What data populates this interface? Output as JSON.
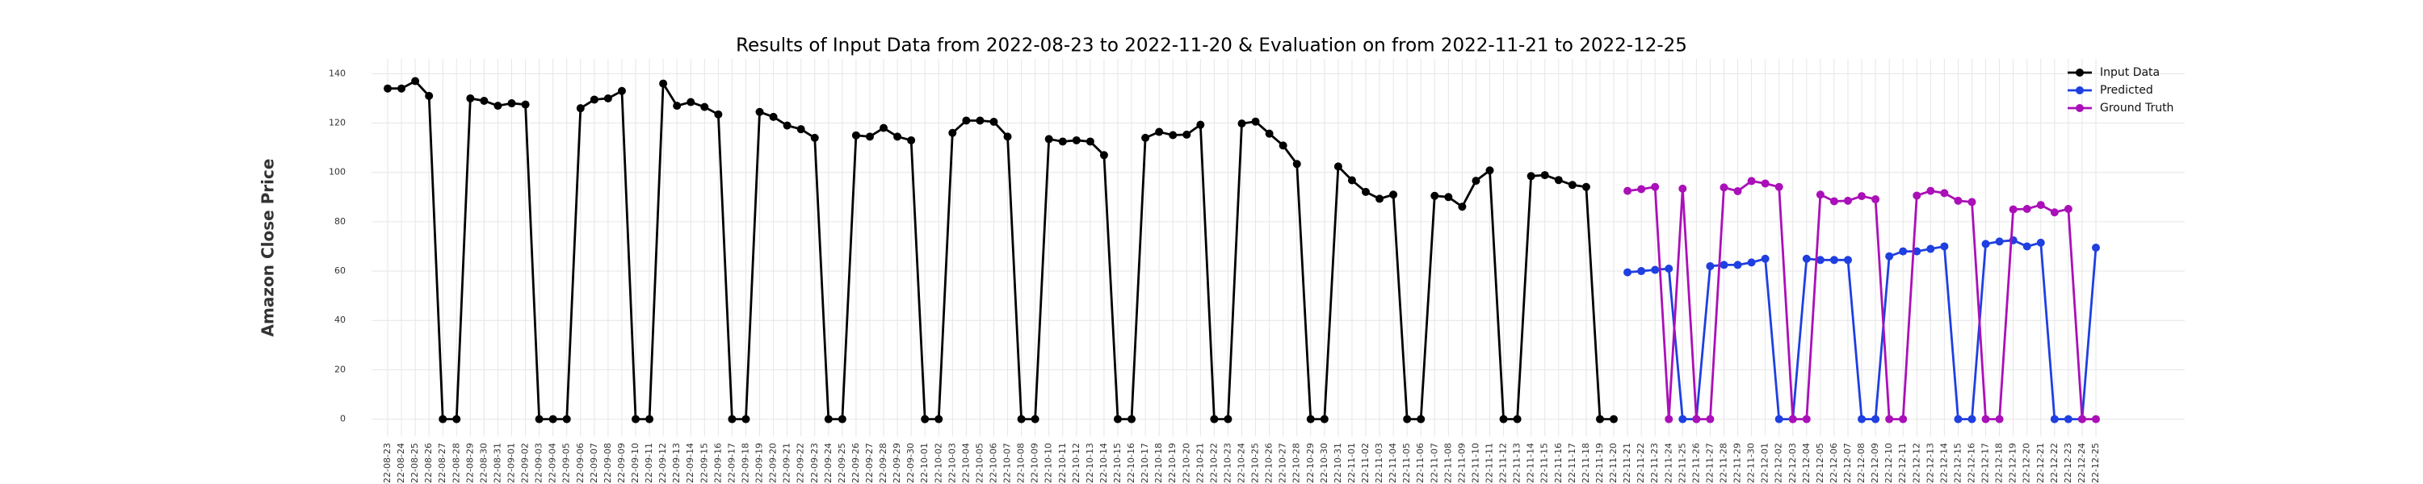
{
  "chart_data": {
    "type": "line",
    "title": "Results of Input Data from 2022-08-23 to 2022-11-20 & Evaluation on from 2022-11-21 to 2022-12-25",
    "y_label": "Amazon Close Price",
    "categories": [
      "2022-08-23",
      "2022-08-24",
      "2022-08-25",
      "2022-08-26",
      "2022-08-27",
      "2022-08-28",
      "2022-08-29",
      "2022-08-30",
      "2022-08-31",
      "2022-09-01",
      "2022-09-02",
      "2022-09-03",
      "2022-09-04",
      "2022-09-05",
      "2022-09-06",
      "2022-09-07",
      "2022-09-08",
      "2022-09-09",
      "2022-09-10",
      "2022-09-11",
      "2022-09-12",
      "2022-09-13",
      "2022-09-14",
      "2022-09-15",
      "2022-09-16",
      "2022-09-17",
      "2022-09-18",
      "2022-09-19",
      "2022-09-20",
      "2022-09-21",
      "2022-09-22",
      "2022-09-23",
      "2022-09-24",
      "2022-09-25",
      "2022-09-26",
      "2022-09-27",
      "2022-09-28",
      "2022-09-29",
      "2022-09-30",
      "2022-10-01",
      "2022-10-02",
      "2022-10-03",
      "2022-10-04",
      "2022-10-05",
      "2022-10-06",
      "2022-10-07",
      "2022-10-08",
      "2022-10-09",
      "2022-10-10",
      "2022-10-11",
      "2022-10-12",
      "2022-10-13",
      "2022-10-14",
      "2022-10-15",
      "2022-10-16",
      "2022-10-17",
      "2022-10-18",
      "2022-10-19",
      "2022-10-20",
      "2022-10-21",
      "2022-10-22",
      "2022-10-23",
      "2022-10-24",
      "2022-10-25",
      "2022-10-26",
      "2022-10-27",
      "2022-10-28",
      "2022-10-29",
      "2022-10-30",
      "2022-10-31",
      "2022-11-01",
      "2022-11-02",
      "2022-11-03",
      "2022-11-04",
      "2022-11-05",
      "2022-11-06",
      "2022-11-07",
      "2022-11-08",
      "2022-11-09",
      "2022-11-10",
      "2022-11-11",
      "2022-11-12",
      "2022-11-13",
      "2022-11-14",
      "2022-11-15",
      "2022-11-16",
      "2022-11-17",
      "2022-11-18",
      "2022-11-19",
      "2022-11-20",
      "2022-11-21",
      "2022-11-22",
      "2022-11-23",
      "2022-11-24",
      "2022-11-25",
      "2022-11-26",
      "2022-11-27",
      "2022-11-28",
      "2022-11-29",
      "2022-11-30",
      "2022-12-01",
      "2022-12-02",
      "2022-12-03",
      "2022-12-04",
      "2022-12-05",
      "2022-12-06",
      "2022-12-07",
      "2022-12-08",
      "2022-12-09",
      "2022-12-10",
      "2022-12-11",
      "2022-12-12",
      "2022-12-13",
      "2022-12-14",
      "2022-12-15",
      "2022-12-16",
      "2022-12-17",
      "2022-12-18",
      "2022-12-19",
      "2022-12-20",
      "2022-12-21",
      "2022-12-22",
      "2022-12-23",
      "2022-12-24",
      "2022-12-25"
    ],
    "series": [
      {
        "name": "Input Data",
        "color": "#000000",
        "values": [
          134,
          134,
          137,
          131,
          0,
          0,
          130,
          129,
          127,
          128,
          127.5,
          0,
          0,
          0,
          126,
          129.5,
          130,
          133,
          0,
          0,
          136,
          127,
          128.5,
          126.5,
          123.5,
          0,
          0,
          124.5,
          122.5,
          119,
          117.5,
          114,
          0,
          0,
          115,
          114.5,
          118,
          114.5,
          113,
          0,
          0,
          116,
          121,
          121,
          120.5,
          114.5,
          0,
          0,
          113.5,
          112.5,
          113,
          112.5,
          107,
          0,
          0,
          114,
          116.4,
          115.1,
          115.3,
          119.3,
          0,
          0,
          119.8,
          120.6,
          115.7,
          110.9,
          103.4,
          0,
          0,
          102.4,
          96.8,
          92.1,
          89.3,
          91,
          0,
          0,
          90.5,
          90,
          86.1,
          96.6,
          100.8,
          0,
          0,
          98.5,
          98.9,
          96.9,
          94.9,
          94.1,
          0,
          0,
          null,
          null,
          null,
          null,
          null,
          null,
          null,
          null,
          null,
          null,
          null,
          null,
          null,
          null,
          null,
          null,
          null,
          null,
          null,
          null,
          null,
          null,
          null,
          null,
          null,
          null,
          null,
          null,
          null,
          null,
          null,
          null,
          null,
          null,
          null
        ]
      },
      {
        "name": "Predicted",
        "color": "#1f3fe0",
        "values": [
          null,
          null,
          null,
          null,
          null,
          null,
          null,
          null,
          null,
          null,
          null,
          null,
          null,
          null,
          null,
          null,
          null,
          null,
          null,
          null,
          null,
          null,
          null,
          null,
          null,
          null,
          null,
          null,
          null,
          null,
          null,
          null,
          null,
          null,
          null,
          null,
          null,
          null,
          null,
          null,
          null,
          null,
          null,
          null,
          null,
          null,
          null,
          null,
          null,
          null,
          null,
          null,
          null,
          null,
          null,
          null,
          null,
          null,
          null,
          null,
          null,
          null,
          null,
          null,
          null,
          null,
          null,
          null,
          null,
          null,
          null,
          null,
          null,
          null,
          null,
          null,
          null,
          null,
          null,
          null,
          null,
          null,
          null,
          null,
          null,
          null,
          null,
          null,
          null,
          null,
          59.5,
          60,
          60.5,
          61,
          0,
          0,
          62,
          62.5,
          62.5,
          63.5,
          65,
          0,
          0,
          65,
          64.5,
          64.5,
          64.5,
          0,
          0,
          66,
          68,
          68,
          69,
          70,
          0,
          0,
          71,
          72,
          72.5,
          70,
          71.5,
          0,
          0,
          0,
          69.5
        ]
      },
      {
        "name": "Ground Truth",
        "color": "#aa10b8",
        "values": [
          null,
          null,
          null,
          null,
          null,
          null,
          null,
          null,
          null,
          null,
          null,
          null,
          null,
          null,
          null,
          null,
          null,
          null,
          null,
          null,
          null,
          null,
          null,
          null,
          null,
          null,
          null,
          null,
          null,
          null,
          null,
          null,
          null,
          null,
          null,
          null,
          null,
          null,
          null,
          null,
          null,
          null,
          null,
          null,
          null,
          null,
          null,
          null,
          null,
          null,
          null,
          null,
          null,
          null,
          null,
          null,
          null,
          null,
          null,
          null,
          null,
          null,
          null,
          null,
          null,
          null,
          null,
          null,
          null,
          null,
          null,
          null,
          null,
          null,
          null,
          null,
          null,
          null,
          null,
          null,
          null,
          null,
          null,
          null,
          null,
          null,
          null,
          null,
          null,
          null,
          92.5,
          93.2,
          94.1,
          0,
          93.4,
          0,
          0,
          93.9,
          92.4,
          96.5,
          95.5,
          94.1,
          0,
          0,
          91,
          88.3,
          88.5,
          90.4,
          89.1,
          0,
          0,
          90.6,
          92.5,
          91.6,
          88.5,
          88,
          0,
          0,
          85,
          85.2,
          86.8,
          83.8,
          85.2,
          0,
          0
        ]
      }
    ],
    "ylim": [
      -7,
      146
    ],
    "yticks": [
      0,
      20,
      40,
      60,
      80,
      100,
      120,
      140
    ],
    "grid": true,
    "legend": "upper right"
  }
}
